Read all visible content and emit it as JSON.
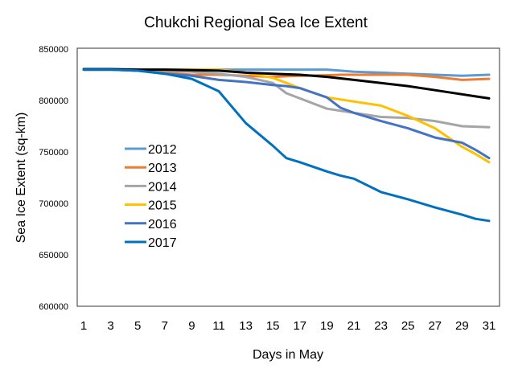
{
  "chart_data": {
    "type": "line",
    "title": "Chukchi Regional Sea Ice Extent",
    "xlabel": "Days in May",
    "ylabel": "Sea Ice Extent (sq-km)",
    "ylim": [
      600000,
      850000
    ],
    "yticks": [
      "850000",
      "800000",
      "750000",
      "700000",
      "650000",
      "600000"
    ],
    "ytick_values": [
      850000,
      800000,
      750000,
      700000,
      650000,
      600000
    ],
    "xticks": [
      "1",
      "3",
      "5",
      "7",
      "9",
      "11",
      "13",
      "15",
      "17",
      "19",
      "21",
      "23",
      "25",
      "27",
      "29",
      "31"
    ],
    "xlim": [
      1,
      31
    ],
    "legend_position": "left",
    "x": [
      1,
      3,
      5,
      7,
      9,
      11,
      13,
      15,
      16,
      17,
      19,
      20,
      21,
      23,
      25,
      27,
      29,
      30,
      31
    ],
    "series": [
      {
        "name": "2012",
        "color": "#5B9BD5",
        "values": [
          830000,
          830000,
          830000,
          830000,
          830000,
          830000,
          830000,
          830000,
          830000,
          830000,
          830000,
          829000,
          828000,
          827000,
          826000,
          825000,
          824000,
          824500,
          825000
        ]
      },
      {
        "name": "2013",
        "color": "#ED7D31",
        "values": [
          830000,
          830000,
          829000,
          827000,
          825000,
          825000,
          824000,
          823000,
          823500,
          824000,
          824500,
          825000,
          825000,
          825000,
          825000,
          823000,
          820000,
          820500,
          821000
        ]
      },
      {
        "name": "2014",
        "color": "#A5A5A5",
        "values": [
          830000,
          830000,
          830000,
          829000,
          828000,
          826000,
          823000,
          817000,
          807000,
          802000,
          792000,
          790000,
          788000,
          784000,
          783000,
          780000,
          775000,
          774500,
          774000
        ]
      },
      {
        "name": "2015",
        "color": "#FFC000",
        "values": [
          830000,
          830000,
          830000,
          830000,
          830000,
          830000,
          827000,
          822000,
          817000,
          812000,
          803000,
          801000,
          799000,
          795000,
          785000,
          773000,
          755000,
          748000,
          740000
        ]
      },
      {
        "name": "2016",
        "color": "#4472C4",
        "values": [
          830000,
          830000,
          829000,
          826000,
          824000,
          820000,
          818000,
          815000,
          814000,
          812000,
          803000,
          793000,
          788000,
          780000,
          773000,
          764000,
          759000,
          752000,
          744000
        ]
      },
      {
        "name": "2017",
        "color": "#0070C0",
        "values": [
          830000,
          830000,
          829000,
          826000,
          821000,
          809000,
          778000,
          756000,
          744000,
          740000,
          731000,
          727000,
          724000,
          711000,
          704000,
          696000,
          689000,
          685000,
          683000
        ]
      },
      {
        "name": "",
        "color": "#000000",
        "values": [
          830500,
          830500,
          830000,
          830000,
          829500,
          829000,
          827000,
          826000,
          825500,
          825000,
          823000,
          821500,
          820000,
          817000,
          814000,
          810000,
          806000,
          804000,
          802000
        ]
      }
    ]
  }
}
